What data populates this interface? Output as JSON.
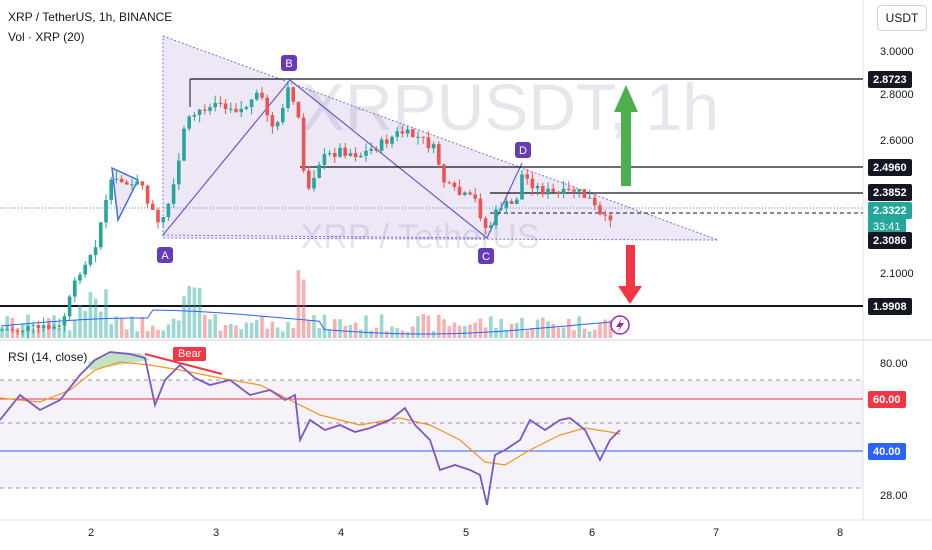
{
  "header": {
    "symbol_line": "XRP / TetherUS, 1h, BINANCE",
    "volume_line": "Vol · XRP (20)",
    "rsi_line": "RSI (14, close)"
  },
  "watermark": {
    "ticker": "XRPUSDT, 1h",
    "name": "XRP / TetherUS"
  },
  "unit_button": "USDT",
  "price_axis": {
    "ticks": [
      "3.0000",
      "2.8000",
      "2.6000",
      "2.1000"
    ]
  },
  "price_tags": {
    "level_1": "2.8723",
    "level_2": "2.4960",
    "level_3": "2.3852",
    "current": "2.3322",
    "countdown": "33:41",
    "level_4": "2.3086",
    "level_5": "1.9908"
  },
  "rsi_axis": {
    "ticks": [
      "80.00",
      "28.00"
    ],
    "upper_tag": "60.00",
    "lower_tag": "40.00"
  },
  "time_axis": [
    "2",
    "3",
    "4",
    "5",
    "6",
    "7",
    "8"
  ],
  "pattern_labels": {
    "a": "A",
    "b": "B",
    "c": "C",
    "d": "D"
  },
  "rsi_signal": "Bear",
  "colors": {
    "bull": "#26a69a",
    "bear": "#ef5350",
    "pattern": "#6a5acd",
    "rsi": "#7e57c2",
    "rsi_ma": "#f7931a",
    "up_arrow": "#4caf50",
    "down_arrow": "#f23645"
  },
  "chart_data": {
    "type": "candlestick",
    "symbol": "XRP / TetherUS",
    "interval": "1h",
    "exchange": "BINANCE",
    "price_axis": {
      "unit": "USDT",
      "ticks": [
        3.0,
        2.8,
        2.6,
        2.1
      ]
    },
    "x_ticks": [
      "2",
      "3",
      "4",
      "5",
      "6",
      "7",
      "8"
    ],
    "horizontal_levels": [
      2.8723,
      2.496,
      2.3852,
      2.3086,
      1.9908
    ],
    "current_price": 2.3322,
    "pattern_points": {
      "A": {
        "day": 2.6,
        "price": 2.31
      },
      "B": {
        "day": 3.6,
        "price": 2.87
      },
      "C": {
        "day": 5.2,
        "price": 2.31
      },
      "D": {
        "day": 5.5,
        "price": 2.5
      }
    },
    "rsi": {
      "period": 14,
      "source": "close",
      "levels": [
        60,
        40
      ],
      "ticks": [
        80,
        28
      ]
    }
  }
}
